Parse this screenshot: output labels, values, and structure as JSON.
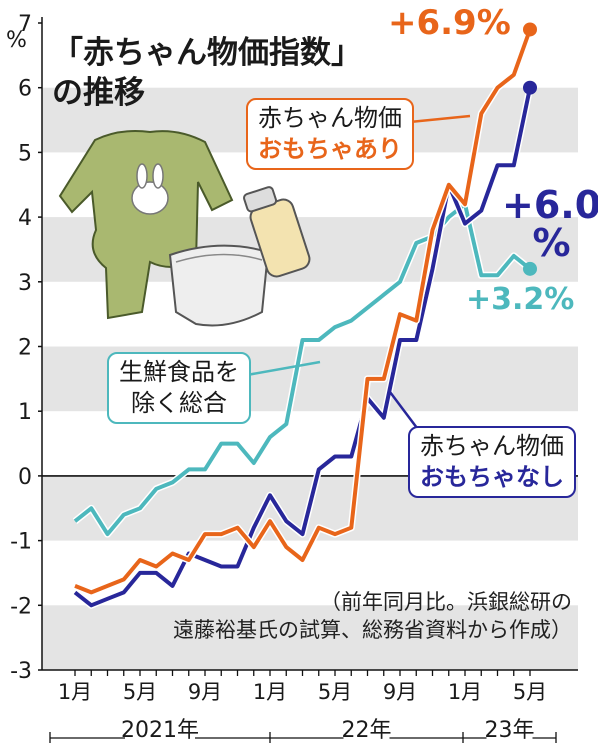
{
  "title": "「赤ちゃん物価指数」\nの推移",
  "y_unit": "%",
  "note": "（前年同月比。浜銀総研の\n遠藤裕基氏の試算、総務省資料から作成）",
  "colors": {
    "orange": "#e8651a",
    "navy": "#28279a",
    "teal": "#4db8bd",
    "band": "#e4e4e4",
    "axis": "#111111"
  },
  "callouts": {
    "orange": "赤ちゃん物価\nおもちゃあり",
    "navy": "赤ちゃん物価\nおもちゃなし",
    "teal": "生鮮食品を\n除く総合"
  },
  "end_labels": {
    "orange": "+6.9%",
    "navy": "+6.0\n%",
    "teal": "+3.2%"
  },
  "chart_data": {
    "type": "line",
    "ylim": [
      -3,
      7
    ],
    "yticks": [
      "7",
      "6",
      "5",
      "4",
      "3",
      "2",
      "1",
      "0",
      "-1",
      "-2",
      "-3"
    ],
    "x_months": [
      "2021-01",
      "2021-02",
      "2021-03",
      "2021-04",
      "2021-05",
      "2021-06",
      "2021-07",
      "2021-08",
      "2021-09",
      "2021-10",
      "2021-11",
      "2021-12",
      "2022-01",
      "2022-02",
      "2022-03",
      "2022-04",
      "2022-05",
      "2022-06",
      "2022-07",
      "2022-08",
      "2022-09",
      "2022-10",
      "2022-11",
      "2022-12",
      "2023-01",
      "2023-02",
      "2023-03",
      "2023-04",
      "2023-05"
    ],
    "xtick_labels": [
      {
        "month": "2021-01",
        "label": "1月"
      },
      {
        "month": "2021-05",
        "label": "5月"
      },
      {
        "month": "2021-09",
        "label": "9月"
      },
      {
        "month": "2022-01",
        "label": "1月"
      },
      {
        "month": "2022-05",
        "label": "5月"
      },
      {
        "month": "2022-09",
        "label": "9月"
      },
      {
        "month": "2023-01",
        "label": "1月"
      },
      {
        "month": "2023-05",
        "label": "5月"
      }
    ],
    "year_labels": [
      "2021年",
      "22年",
      "23年"
    ],
    "series": [
      {
        "name": "赤ちゃん物価 おもちゃあり",
        "color": "#e8651a",
        "values": [
          -1.7,
          -1.8,
          -1.7,
          -1.6,
          -1.3,
          -1.4,
          -1.2,
          -1.3,
          -0.9,
          -0.9,
          -0.8,
          -1.1,
          -0.7,
          -1.1,
          -1.3,
          -0.8,
          -0.9,
          -0.8,
          1.5,
          1.5,
          2.5,
          2.4,
          3.8,
          4.5,
          4.2,
          5.6,
          6.0,
          6.2,
          6.9
        ]
      },
      {
        "name": "赤ちゃん物価 おもちゃなし",
        "color": "#28279a",
        "values": [
          -1.8,
          -2.0,
          -1.9,
          -1.8,
          -1.5,
          -1.5,
          -1.7,
          -1.2,
          -1.3,
          -1.4,
          -1.4,
          -0.8,
          -0.3,
          -0.7,
          -0.9,
          0.1,
          0.3,
          0.3,
          1.2,
          0.9,
          2.1,
          2.1,
          3.2,
          4.5,
          3.9,
          4.1,
          4.8,
          4.8,
          6.0
        ]
      },
      {
        "name": "生鮮食品を除く総合",
        "color": "#4db8bd",
        "values": [
          -0.7,
          -0.5,
          -0.9,
          -0.6,
          -0.5,
          -0.2,
          -0.1,
          0.1,
          0.1,
          0.5,
          0.5,
          0.2,
          0.6,
          0.8,
          2.1,
          2.1,
          2.3,
          2.4,
          2.6,
          2.8,
          3.0,
          3.6,
          3.7,
          4.0,
          4.2,
          3.1,
          3.1,
          3.4,
          3.2
        ]
      }
    ]
  }
}
